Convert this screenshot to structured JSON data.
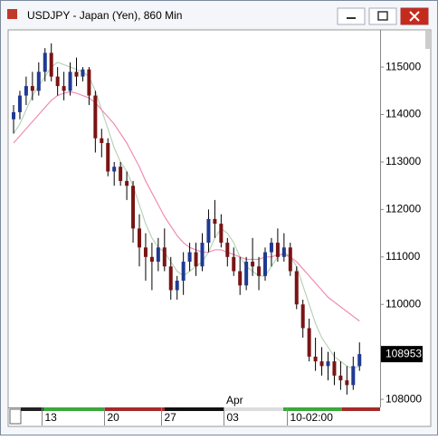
{
  "window_title": "USDJPY - Japan (Yen), 860 Min",
  "chart_data": {
    "type": "candlestick",
    "annotation": "Apr",
    "categories": [
      null,
      null,
      null,
      null,
      null,
      "13",
      null,
      null,
      null,
      null,
      null,
      null,
      null,
      null,
      null,
      "20",
      null,
      null,
      null,
      null,
      null,
      null,
      null,
      null,
      "27",
      null,
      null,
      null,
      null,
      null,
      null,
      null,
      null,
      null,
      "03",
      null,
      null,
      null,
      null,
      null,
      null,
      null,
      null,
      null,
      "10-02:00",
      null,
      null,
      null,
      null,
      null,
      null,
      null,
      null,
      null,
      null,
      null
    ],
    "open": [
      113900,
      114050,
      114400,
      114600,
      114500,
      114900,
      115300,
      114800,
      114600,
      114500,
      114900,
      114800,
      114950,
      114400,
      113500,
      113400,
      112800,
      112900,
      112600,
      112500,
      111600,
      111200,
      111000,
      110900,
      111200,
      110800,
      110300,
      110500,
      110900,
      111100,
      110800,
      111300,
      111800,
      111700,
      111300,
      111000,
      110700,
      110400,
      110900,
      110800,
      110600,
      111100,
      111300,
      111000,
      111200,
      110700,
      110000,
      109500,
      108900,
      108800,
      108700,
      108800,
      108500,
      108400,
      108300,
      108700
    ],
    "high": [
      114200,
      114500,
      114800,
      114900,
      115100,
      115400,
      115500,
      115000,
      114900,
      115100,
      115200,
      115000,
      115000,
      114500,
      113700,
      113500,
      113000,
      113000,
      112800,
      112600,
      111900,
      111500,
      111300,
      111400,
      111600,
      111000,
      110600,
      111100,
      111300,
      111300,
      111500,
      112000,
      112200,
      111900,
      111400,
      111200,
      111000,
      111000,
      111400,
      111000,
      111200,
      111400,
      111600,
      111500,
      111300,
      110800,
      110100,
      109700,
      109300,
      109100,
      109000,
      109000,
      108800,
      108700,
      108900,
      109200
    ],
    "low": [
      113600,
      113900,
      114200,
      114300,
      114400,
      114700,
      114700,
      114400,
      114300,
      114400,
      114600,
      114700,
      114200,
      113200,
      113100,
      112700,
      112500,
      112500,
      112200,
      111300,
      110800,
      110500,
      110300,
      110700,
      110700,
      110100,
      110100,
      110200,
      110700,
      110600,
      110700,
      111100,
      111400,
      111200,
      110800,
      110600,
      110200,
      110300,
      110600,
      110300,
      110500,
      110800,
      110900,
      110900,
      110600,
      109900,
      109300,
      108800,
      108600,
      108500,
      108400,
      108300,
      108200,
      108100,
      108200,
      108600
    ],
    "close": [
      114050,
      114400,
      114600,
      114500,
      114900,
      115300,
      114800,
      114600,
      114500,
      114900,
      114800,
      114950,
      114400,
      113500,
      113400,
      112800,
      112900,
      112600,
      112500,
      111600,
      111200,
      111000,
      110900,
      111200,
      110800,
      110300,
      110500,
      110900,
      111100,
      110800,
      111300,
      111800,
      111700,
      111300,
      111000,
      110700,
      110400,
      110900,
      110800,
      110600,
      111100,
      111300,
      111000,
      111200,
      110700,
      110000,
      109500,
      108900,
      108800,
      108700,
      108800,
      108500,
      108400,
      108300,
      108700,
      108953
    ],
    "up_color": "#1f3a93",
    "down_color": "#7a1414",
    "series": [
      {
        "color": "#b9d3b9",
        "values": [
          113600,
          113800,
          114100,
          114400,
          114600,
          114800,
          115000,
          115100,
          115050,
          115000,
          114950,
          114900,
          114800,
          114500,
          114100,
          113700,
          113300,
          113000,
          112800,
          112500,
          112100,
          111700,
          111400,
          111200,
          111100,
          110900,
          110700,
          110600,
          110700,
          110800,
          110900,
          111100,
          111400,
          111600,
          111500,
          111300,
          111000,
          110800,
          110700,
          110600,
          110600,
          110800,
          111000,
          111100,
          111000,
          110800,
          110400,
          110000,
          109600,
          109300,
          109100,
          108900,
          108800,
          108700,
          108650,
          108700
        ]
      },
      {
        "color": "#f08cb4",
        "values": [
          113400,
          113550,
          113700,
          113850,
          114000,
          114150,
          114300,
          114400,
          114450,
          114480,
          114450,
          114400,
          114350,
          114250,
          114100,
          113950,
          113800,
          113600,
          113400,
          113150,
          112900,
          112600,
          112350,
          112100,
          111850,
          111650,
          111450,
          111300,
          111200,
          111150,
          111100,
          111100,
          111150,
          111150,
          111100,
          111050,
          111000,
          110950,
          110950,
          110950,
          111000,
          111000,
          111050,
          111050,
          111000,
          110900,
          110750,
          110600,
          110450,
          110300,
          110150,
          110050,
          109950,
          109850,
          109750,
          109650
        ]
      }
    ],
    "last_price": 108953,
    "ylim": [
      107830,
      115765
    ],
    "yticks": [
      108000,
      110000,
      111000,
      112000,
      113000,
      114000,
      115000
    ]
  }
}
